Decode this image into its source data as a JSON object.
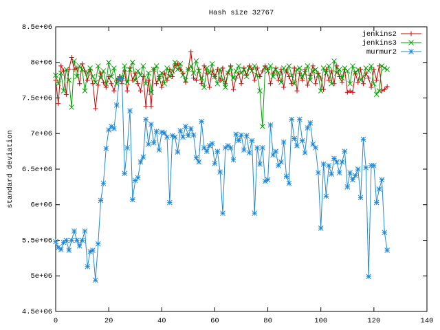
{
  "chart_data": {
    "type": "line",
    "title": "Hash size 32767",
    "ylabel": "standard deviation",
    "xlim": [
      0,
      140
    ],
    "xticks": [
      0,
      20,
      40,
      60,
      80,
      100,
      120,
      140
    ],
    "ylim": [
      4500000.0,
      8500000.0
    ],
    "yticks": [
      {
        "value": 4500000.0,
        "label": "4.5e+06"
      },
      {
        "value": 5000000.0,
        "label": "5e+06"
      },
      {
        "value": 5500000.0,
        "label": "5.5e+06"
      },
      {
        "value": 6000000.0,
        "label": "6e+06"
      },
      {
        "value": 6500000.0,
        "label": "6.5e+06"
      },
      {
        "value": 7000000.0,
        "label": "7e+06"
      },
      {
        "value": 7500000.0,
        "label": "7.5e+06"
      },
      {
        "value": 8000000.0,
        "label": "8e+06"
      },
      {
        "value": 8500000.0,
        "label": "8.5e+06"
      }
    ],
    "grid": false,
    "legend": "top-right",
    "x": [
      0,
      1,
      2,
      3,
      4,
      5,
      6,
      7,
      8,
      9,
      10,
      11,
      12,
      13,
      14,
      15,
      16,
      17,
      18,
      19,
      20,
      21,
      22,
      23,
      24,
      25,
      26,
      27,
      28,
      29,
      30,
      31,
      32,
      33,
      34,
      35,
      36,
      37,
      38,
      39,
      40,
      41,
      42,
      43,
      44,
      45,
      46,
      47,
      48,
      49,
      50,
      51,
      52,
      53,
      54,
      55,
      56,
      57,
      58,
      59,
      60,
      61,
      62,
      63,
      64,
      65,
      66,
      67,
      68,
      69,
      70,
      71,
      72,
      73,
      74,
      75,
      76,
      77,
      78,
      79,
      80,
      81,
      82,
      83,
      84,
      85,
      86,
      87,
      88,
      89,
      90,
      91,
      92,
      93,
      94,
      95,
      96,
      97,
      98,
      99,
      100,
      101,
      102,
      103,
      104,
      105,
      106,
      107,
      108,
      109,
      110,
      111,
      112,
      113,
      114,
      115,
      116,
      117,
      118,
      119,
      120,
      121,
      122,
      123,
      124,
      125
    ],
    "series": [
      {
        "name": "jenkins2",
        "color": "#d00000",
        "marker": "plus",
        "values": [
          7750000.0,
          7420000.0,
          7950000.0,
          7880000.0,
          7550000.0,
          7900000.0,
          8070000.0,
          7900000.0,
          7920000.0,
          7700000.0,
          7980000.0,
          7880000.0,
          7750000.0,
          7900000.0,
          7700000.0,
          7350000.0,
          7680000.0,
          7850000.0,
          7720000.0,
          7650000.0,
          7800000.0,
          7700000.0,
          7600000.0,
          7750000.0,
          7800000.0,
          7700000.0,
          7880000.0,
          7600000.0,
          7920000.0,
          7750000.0,
          7850000.0,
          7700000.0,
          7600000.0,
          7800000.0,
          7380000.0,
          7750000.0,
          7380000.0,
          7900000.0,
          7700000.0,
          7800000.0,
          7650000.0,
          7850000.0,
          7750000.0,
          7900000.0,
          7800000.0,
          7950000.0,
          7980000.0,
          7900000.0,
          7850000.0,
          7720000.0,
          7900000.0,
          8150000.0,
          7780000.0,
          7750000.0,
          7900000.0,
          7700000.0,
          7950000.0,
          7850000.0,
          7650000.0,
          7880000.0,
          7800000.0,
          7900000.0,
          7750000.0,
          7920000.0,
          7700000.0,
          7850000.0,
          7950000.0,
          7620000.0,
          7780000.0,
          7850000.0,
          7700000.0,
          7920000.0,
          7820000.0,
          7950000.0,
          7900000.0,
          7750000.0,
          7920000.0,
          7800000.0,
          7880000.0,
          7950000.0,
          7900000.0,
          7700000.0,
          7850000.0,
          7920000.0,
          7750000.0,
          7900000.0,
          7650000.0,
          7880000.0,
          7800000.0,
          7700000.0,
          7920000.0,
          7600000.0,
          7850000.0,
          7750000.0,
          7900000.0,
          7680000.0,
          7820000.0,
          7950000.0,
          7700000.0,
          7850000.0,
          7780000.0,
          7620000.0,
          7900000.0,
          7750000.0,
          7880000.0,
          7700000.0,
          7950000.0,
          7800000.0,
          7720000.0,
          7900000.0,
          7580000.0,
          7600000.0,
          7580000.0,
          7850000.0,
          7720000.0,
          7900000.0,
          7700000.0,
          7850000.0,
          7780000.0,
          7650000.0,
          7900000.0,
          7750000.0,
          7950000.0,
          7600000.0,
          7620000.0,
          7660000.0
        ]
      },
      {
        "name": "jenkins3",
        "color": "#00a000",
        "marker": "cross",
        "values": [
          7820000.0,
          7700000.0,
          7850000.0,
          7600000.0,
          7900000.0,
          7750000.0,
          7370000.0,
          8020000.0,
          7800000.0,
          7950000.0,
          7900000.0,
          7600000.0,
          7850000.0,
          7920000.0,
          7800000.0,
          7720000.0,
          7950000.0,
          7780000.0,
          7880000.0,
          7700000.0,
          8000000.0,
          7800000.0,
          7920000.0,
          7700000.0,
          7750000.0,
          7800000.0,
          7950000.0,
          7720000.0,
          7900000.0,
          8000000.0,
          7750000.0,
          7880000.0,
          7820000.0,
          7950000.0,
          7700000.0,
          7850000.0,
          7580000.0,
          7900000.0,
          7950000.0,
          7750000.0,
          7850000.0,
          7700000.0,
          7920000.0,
          7800000.0,
          7880000.0,
          8000000.0,
          7900000.0,
          7980000.0,
          7820000.0,
          7750000.0,
          7900000.0,
          7950000.0,
          7850000.0,
          8020000.0,
          7880000.0,
          7780000.0,
          7650000.0,
          7920000.0,
          7850000.0,
          7980000.0,
          7800000.0,
          7700000.0,
          7900000.0,
          7750000.0,
          7650000.0,
          7850000.0,
          7920000.0,
          7780000.0,
          7880000.0,
          7950000.0,
          7850000.0,
          7900000.0,
          7800000.0,
          7920000.0,
          7880000.0,
          7950000.0,
          7820000.0,
          7600000.0,
          7100000.0,
          7920000.0,
          7880000.0,
          7950000.0,
          7800000.0,
          7900000.0,
          7850000.0,
          7720000.0,
          7920000.0,
          7880000.0,
          7950000.0,
          7820000.0,
          7700000.0,
          7900000.0,
          7920000.0,
          7800000.0,
          7850000.0,
          7950000.0,
          7750000.0,
          7880000.0,
          7900000.0,
          7820000.0,
          7600000.0,
          7920000.0,
          7850000.0,
          7950000.0,
          7700000.0,
          8020000.0,
          7850000.0,
          7900000.0,
          7780000.0,
          7920000.0,
          7880000.0,
          7700000.0,
          7950000.0,
          7850000.0,
          7900000.0,
          7750000.0,
          7800000.0,
          7920000.0,
          7880000.0,
          7950000.0,
          7700000.0,
          7550000.0,
          7600000.0,
          7950000.0,
          7920000.0,
          7900000.0
        ]
      },
      {
        "name": "murmur2",
        "color": "#1e88d8",
        "marker": "star",
        "values": [
          5480000.0,
          5400000.0,
          5370000.0,
          5470000.0,
          5500000.0,
          5360000.0,
          5500000.0,
          5630000.0,
          5500000.0,
          5420000.0,
          5500000.0,
          5630000.0,
          5130000.0,
          5340000.0,
          5360000.0,
          4940000.0,
          5450000.0,
          6060000.0,
          6300000.0,
          6790000.0,
          7050000.0,
          7100000.0,
          7070000.0,
          7400000.0,
          7770000.0,
          7770000.0,
          6440000.0,
          6800000.0,
          7320000.0,
          6070000.0,
          6340000.0,
          6380000.0,
          6600000.0,
          6670000.0,
          7200000.0,
          6850000.0,
          7130000.0,
          6870000.0,
          7030000.0,
          6770000.0,
          7020000.0,
          7010000.0,
          6950000.0,
          6030000.0,
          6970000.0,
          6950000.0,
          6740000.0,
          7040000.0,
          6950000.0,
          7100000.0,
          6970000.0,
          7070000.0,
          6980000.0,
          6660000.0,
          6600000.0,
          7170000.0,
          6800000.0,
          6750000.0,
          6830000.0,
          6860000.0,
          6580000.0,
          6750000.0,
          6460000.0,
          5880000.0,
          6800000.0,
          6830000.0,
          6800000.0,
          6630000.0,
          6990000.0,
          6900000.0,
          6980000.0,
          6770000.0,
          6970000.0,
          6730000.0,
          6900000.0,
          5880000.0,
          6800000.0,
          6570000.0,
          6800000.0,
          6330000.0,
          6350000.0,
          7120000.0,
          6700000.0,
          6750000.0,
          6550000.0,
          6600000.0,
          6880000.0,
          6400000.0,
          6300000.0,
          7200000.0,
          6930000.0,
          6830000.0,
          7200000.0,
          6900000.0,
          6730000.0,
          7080000.0,
          7150000.0,
          6850000.0,
          6800000.0,
          6450000.0,
          5670000.0,
          6570000.0,
          6120000.0,
          6550000.0,
          6430000.0,
          6650000.0,
          6600000.0,
          6450000.0,
          6600000.0,
          6750000.0,
          6250000.0,
          6450000.0,
          6350000.0,
          6410000.0,
          6500000.0,
          6100000.0,
          6920000.0,
          6520000.0,
          4990000.0,
          6550000.0,
          6550000.0,
          6030000.0,
          6220000.0,
          6350000.0,
          5610000.0,
          5360000.0
        ]
      }
    ]
  }
}
